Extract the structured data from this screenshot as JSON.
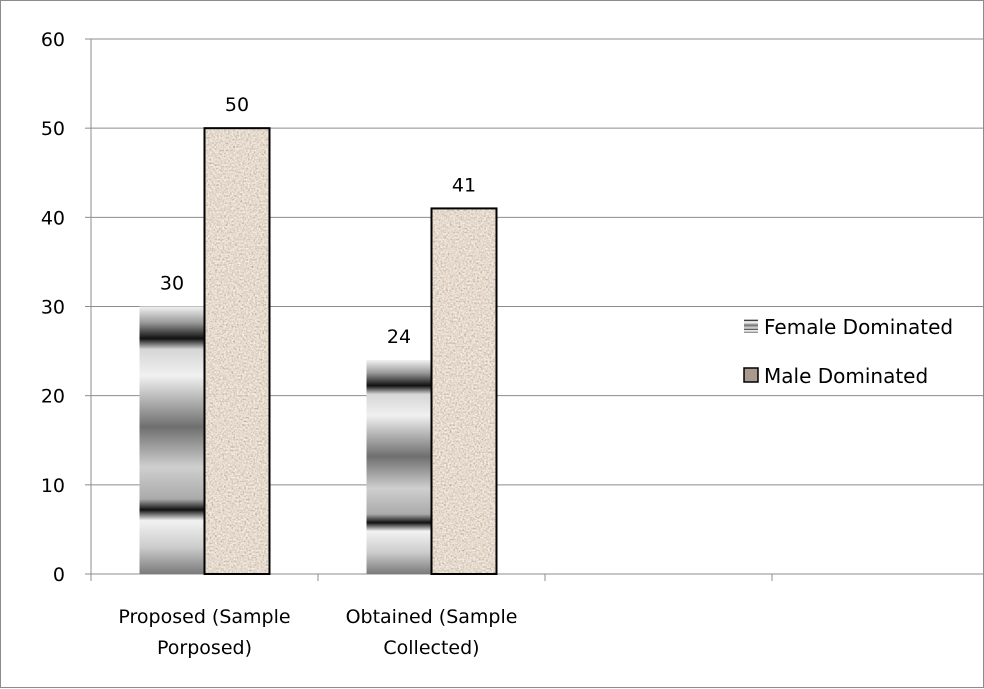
{
  "chart_data": {
    "type": "bar",
    "categories": [
      [
        "Proposed (Sample",
        "Porposed)"
      ],
      [
        "Obtained (Sample",
        "Collected)"
      ],
      [
        ""
      ]
    ],
    "series": [
      {
        "name": "Female Dominated",
        "values": [
          30,
          24,
          null
        ],
        "pattern": "horizontal-gradient-bands",
        "color": "#808080"
      },
      {
        "name": "Male Dominated",
        "values": [
          50,
          41,
          null
        ],
        "pattern": "granite",
        "color": "#a89a8e"
      }
    ],
    "ylim": [
      0,
      60
    ],
    "yticks": [
      0,
      10,
      20,
      30,
      40,
      50,
      60
    ],
    "grid": true,
    "legend": "right",
    "data_labels": true
  }
}
